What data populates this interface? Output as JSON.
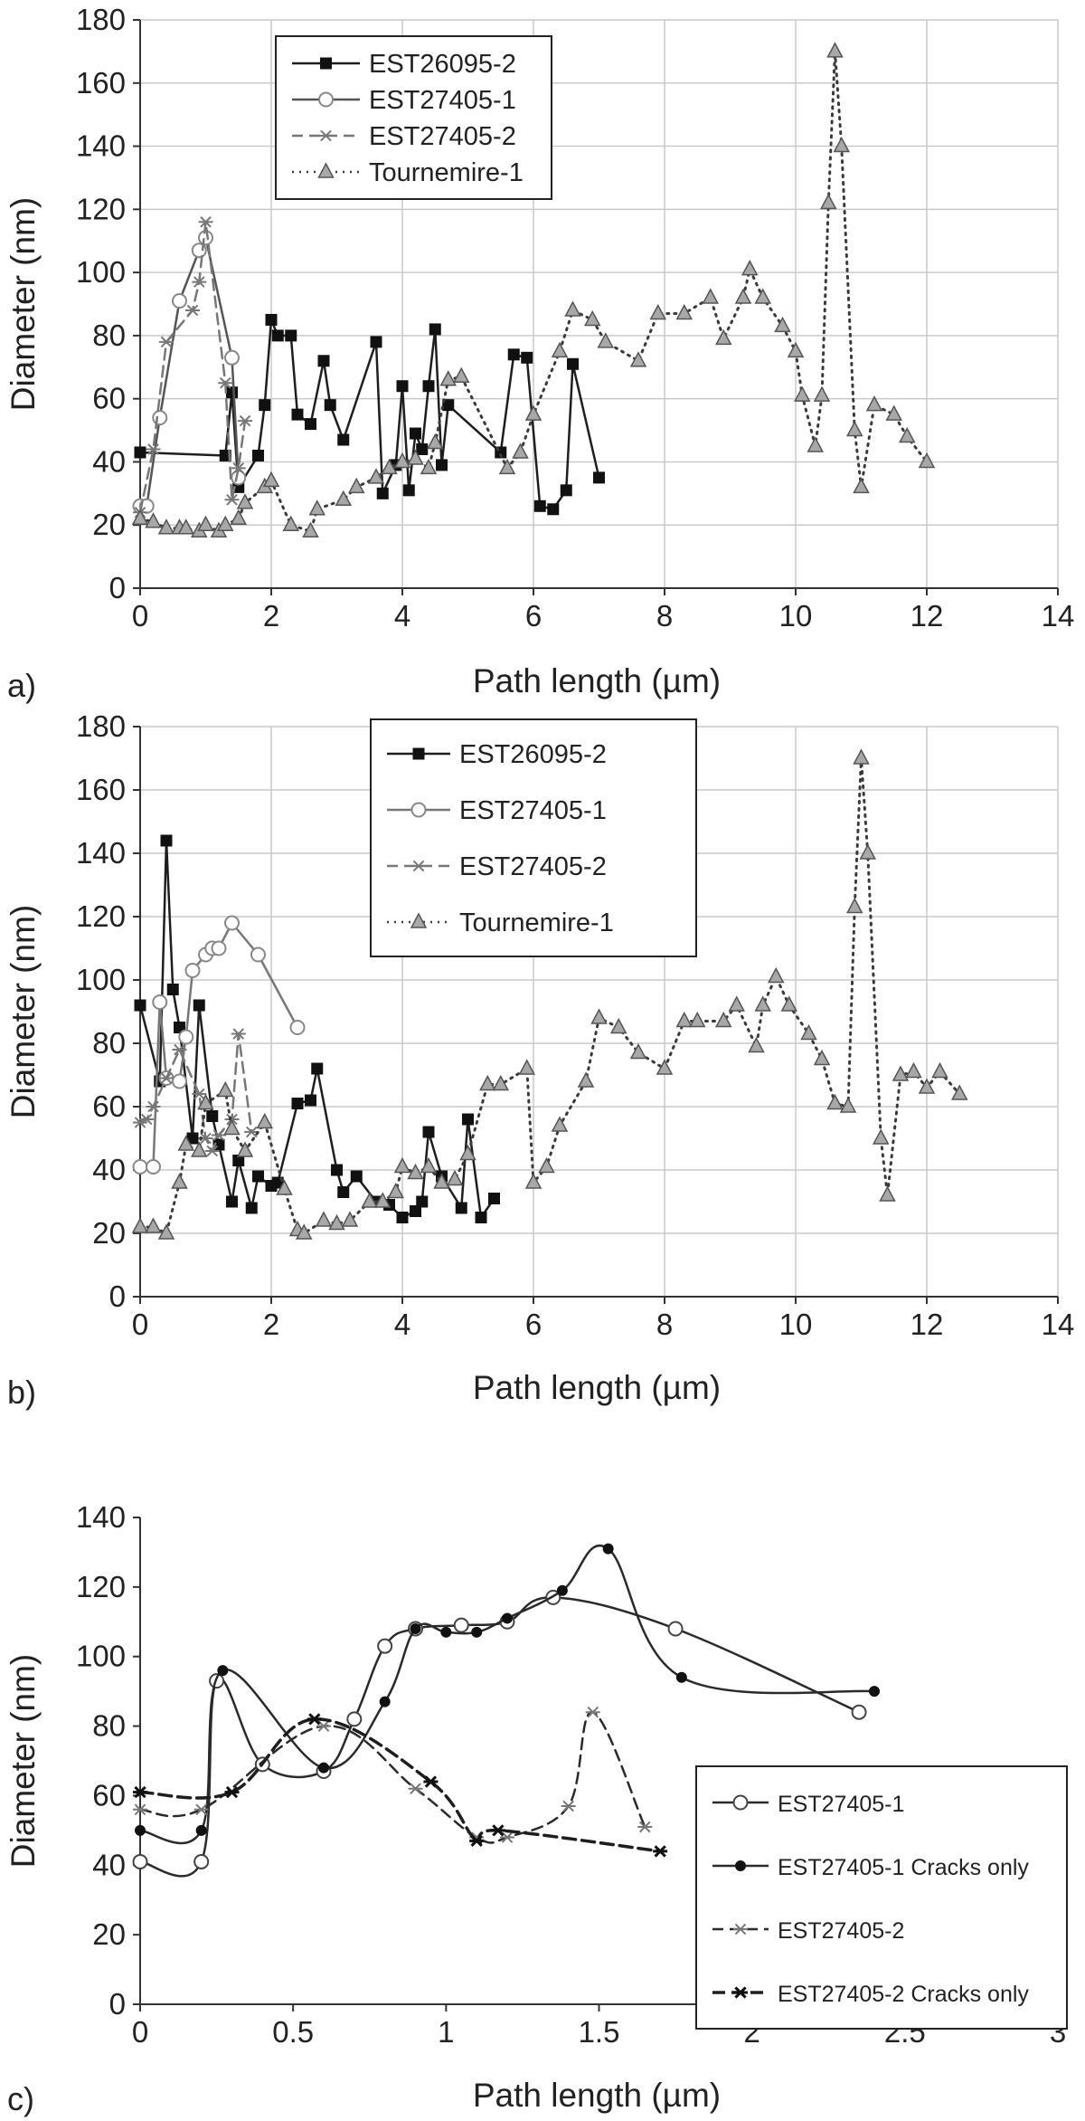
{
  "chart_data": [
    {
      "id": "a",
      "panel_label": "a)",
      "type": "line",
      "xlabel": "Path length (µm)",
      "ylabel": "Diameter (nm)",
      "xlim": [
        0,
        14
      ],
      "ylim": [
        0,
        180
      ],
      "xticks": [
        "0",
        "2",
        "4",
        "6",
        "8",
        "10",
        "12",
        "14"
      ],
      "yticks": [
        "0",
        "20",
        "40",
        "60",
        "80",
        "100",
        "120",
        "140",
        "160",
        "180"
      ],
      "grid": true,
      "legend": "upper-left",
      "series": [
        {
          "name": "EST26095-2",
          "color": "#1e1e1e",
          "marker": "square-filled",
          "dash": "solid",
          "x": [
            0.0,
            1.3,
            1.4,
            1.5,
            1.8,
            1.9,
            2.0,
            2.1,
            2.3,
            2.4,
            2.6,
            2.8,
            2.9,
            3.1,
            3.6,
            3.7,
            3.9,
            4.0,
            4.1,
            4.2,
            4.3,
            4.4,
            4.5,
            4.6,
            4.7,
            5.5,
            5.7,
            5.9,
            6.1,
            6.3,
            6.5,
            6.6,
            7.0
          ],
          "y": [
            43,
            42,
            62,
            32,
            42,
            58,
            85,
            80,
            80,
            55,
            52,
            72,
            58,
            47,
            78,
            30,
            39,
            64,
            31,
            49,
            44,
            64,
            82,
            39,
            58,
            43,
            74,
            73,
            26,
            25,
            31,
            71,
            35
          ]
        },
        {
          "name": "EST27405-1",
          "color": "#555555",
          "marker": "circle-open",
          "dash": "solid",
          "x": [
            0.0,
            0.1,
            0.3,
            0.6,
            0.9,
            1.0,
            1.4,
            1.5
          ],
          "y": [
            26,
            26,
            54,
            91,
            107,
            111,
            73,
            35
          ]
        },
        {
          "name": "EST27405-2",
          "color": "#777777",
          "marker": "star",
          "dash": "dashed",
          "x": [
            0.0,
            0.2,
            0.4,
            0.8,
            0.9,
            1.0,
            1.3,
            1.4,
            1.5,
            1.6
          ],
          "y": [
            24,
            44,
            78,
            88,
            97,
            116,
            65,
            28,
            38,
            53
          ]
        },
        {
          "name": "Tournemire-1",
          "color": "#666666",
          "marker": "triangle-gray",
          "dash": "dotted",
          "x": [
            0.0,
            0.2,
            0.4,
            0.6,
            0.7,
            0.9,
            1.0,
            1.2,
            1.3,
            1.5,
            1.6,
            1.9,
            2.0,
            2.3,
            2.6,
            2.7,
            3.1,
            3.3,
            3.6,
            3.8,
            4.0,
            4.2,
            4.4,
            4.5,
            4.7,
            4.9,
            5.6,
            5.8,
            6.0,
            6.4,
            6.6,
            6.9,
            7.1,
            7.6,
            7.9,
            8.3,
            8.7,
            8.9,
            9.2,
            9.3,
            9.5,
            9.8,
            10.0,
            10.1,
            10.3,
            10.4,
            10.5,
            10.6,
            10.7,
            10.9,
            11.0,
            11.2,
            11.5,
            11.7,
            12.0
          ],
          "y": [
            22,
            21,
            19,
            19,
            19,
            18,
            20,
            18,
            20,
            22,
            27,
            32,
            34,
            20,
            18,
            25,
            28,
            32,
            35,
            38,
            40,
            41,
            38,
            46,
            66,
            67,
            38,
            43,
            55,
            75,
            88,
            85,
            78,
            72,
            87,
            87,
            92,
            79,
            92,
            101,
            92,
            83,
            75,
            61,
            45,
            61,
            122,
            170,
            140,
            50,
            32,
            58,
            55,
            48,
            40
          ]
        }
      ]
    },
    {
      "id": "b",
      "panel_label": "b)",
      "type": "line",
      "xlabel": "Path length (µm)",
      "ylabel": "Diameter (nm)",
      "xlim": [
        0,
        14
      ],
      "ylim": [
        0,
        180
      ],
      "xticks": [
        "0",
        "2",
        "4",
        "6",
        "8",
        "10",
        "12",
        "14"
      ],
      "yticks": [
        "0",
        "20",
        "40",
        "60",
        "80",
        "100",
        "120",
        "140",
        "160",
        "180"
      ],
      "grid": true,
      "legend": "top-center",
      "series": [
        {
          "name": "EST26095-2",
          "color": "#1e1e1e",
          "marker": "square-filled",
          "dash": "solid",
          "x": [
            0.0,
            0.3,
            0.4,
            0.5,
            0.6,
            0.8,
            0.9,
            1.1,
            1.2,
            1.4,
            1.5,
            1.7,
            1.8,
            2.0,
            2.1,
            2.4,
            2.6,
            2.7,
            3.0,
            3.1,
            3.3,
            3.6,
            3.8,
            4.0,
            4.2,
            4.3,
            4.4,
            4.6,
            4.9,
            5.0,
            5.2,
            5.4
          ],
          "y": [
            92,
            68,
            144,
            97,
            85,
            50,
            92,
            57,
            48,
            30,
            43,
            28,
            38,
            35,
            36,
            61,
            62,
            72,
            40,
            33,
            38,
            30,
            29,
            25,
            27,
            30,
            52,
            38,
            28,
            56,
            25,
            31
          ]
        },
        {
          "name": "EST27405-1",
          "color": "#777777",
          "marker": "circle-open",
          "dash": "solid",
          "x": [
            0.0,
            0.2,
            0.3,
            0.4,
            0.6,
            0.7,
            0.8,
            1.0,
            1.1,
            1.2,
            1.4,
            1.8,
            2.4
          ],
          "y": [
            41,
            41,
            93,
            69,
            68,
            82,
            103,
            108,
            110,
            110,
            118,
            108,
            85
          ]
        },
        {
          "name": "EST27405-2",
          "color": "#777777",
          "marker": "star",
          "dash": "dashed",
          "x": [
            0.0,
            0.1,
            0.2,
            0.4,
            0.6,
            0.9,
            1.0,
            1.1,
            1.2,
            1.4,
            1.5,
            1.7
          ],
          "y": [
            55,
            56,
            60,
            69,
            78,
            64,
            50,
            46,
            51,
            56,
            83,
            52
          ]
        },
        {
          "name": "Tournemire-1",
          "color": "#666666",
          "marker": "triangle-gray",
          "dash": "dotted",
          "x": [
            0.0,
            0.2,
            0.4,
            0.6,
            0.7,
            0.9,
            1.0,
            1.3,
            1.4,
            1.6,
            1.9,
            2.2,
            2.4,
            2.5,
            2.8,
            3.0,
            3.2,
            3.5,
            3.7,
            3.9,
            4.0,
            4.2,
            4.4,
            4.6,
            4.8,
            5.0,
            5.3,
            5.5,
            5.9,
            6.0,
            6.2,
            6.4,
            6.8,
            7.0,
            7.3,
            7.6,
            8.0,
            8.3,
            8.5,
            8.9,
            9.1,
            9.4,
            9.5,
            9.7,
            9.9,
            10.2,
            10.4,
            10.6,
            10.8,
            10.9,
            11.0,
            11.1,
            11.3,
            11.4,
            11.6,
            11.8,
            12.0,
            12.2,
            12.5
          ],
          "y": [
            22,
            22,
            20,
            36,
            48,
            46,
            61,
            65,
            53,
            46,
            55,
            34,
            21,
            20,
            24,
            23,
            24,
            30,
            30,
            33,
            41,
            39,
            41,
            36,
            37,
            45,
            67,
            67,
            72,
            36,
            41,
            54,
            68,
            88,
            85,
            77,
            72,
            87,
            87,
            87,
            92,
            79,
            92,
            101,
            92,
            83,
            75,
            61,
            60,
            123,
            170,
            140,
            50,
            32,
            70,
            71,
            66,
            71,
            64
          ]
        }
      ]
    },
    {
      "id": "c",
      "panel_label": "c)",
      "type": "line",
      "xlabel": "Path length (µm)",
      "ylabel": "Diameter (nm)",
      "xlim": [
        0,
        3
      ],
      "ylim": [
        0,
        140
      ],
      "xticks": [
        "0",
        "0.5",
        "1",
        "1.5",
        "2",
        "2.5",
        "3"
      ],
      "yticks": [
        "0",
        "20",
        "40",
        "60",
        "80",
        "100",
        "120",
        "140"
      ],
      "grid": false,
      "legend": "lower-right",
      "series": [
        {
          "name": "EST27405-1",
          "color": "#2a2a2a",
          "marker": "circle-open",
          "dash": "solid",
          "x": [
            0.0,
            0.2,
            0.25,
            0.4,
            0.6,
            0.7,
            0.8,
            0.9,
            1.05,
            1.2,
            1.35,
            1.75,
            2.35
          ],
          "y": [
            41,
            41,
            93,
            69,
            67,
            82,
            103,
            108,
            109,
            110,
            117,
            108,
            84
          ]
        },
        {
          "name": "EST27405-1 Cracks only",
          "color": "#2a2a2a",
          "marker": "dot-filled",
          "dash": "solid",
          "x": [
            0.0,
            0.2,
            0.27,
            0.6,
            0.8,
            0.9,
            1.0,
            1.1,
            1.2,
            1.38,
            1.53,
            1.77,
            2.4
          ],
          "y": [
            50,
            50,
            96,
            68,
            87,
            108,
            107,
            107,
            111,
            119,
            131,
            94,
            90
          ]
        },
        {
          "name": "EST27405-2",
          "color": "#2a2a2a",
          "marker": "star",
          "dash": "dashed",
          "x": [
            0.0,
            0.2,
            0.6,
            0.9,
            1.1,
            1.2,
            1.4,
            1.48,
            1.65
          ],
          "y": [
            56,
            56,
            80,
            62,
            48,
            48,
            57,
            84,
            51
          ]
        },
        {
          "name": "EST27405-2 Cracks only",
          "color": "#1e1e1e",
          "marker": "asterisk-bold",
          "dash": "dashed-bold",
          "x": [
            0.0,
            0.3,
            0.57,
            0.95,
            1.1,
            1.17,
            1.7
          ],
          "y": [
            61,
            61,
            82,
            64,
            47,
            50,
            44
          ]
        }
      ]
    }
  ]
}
